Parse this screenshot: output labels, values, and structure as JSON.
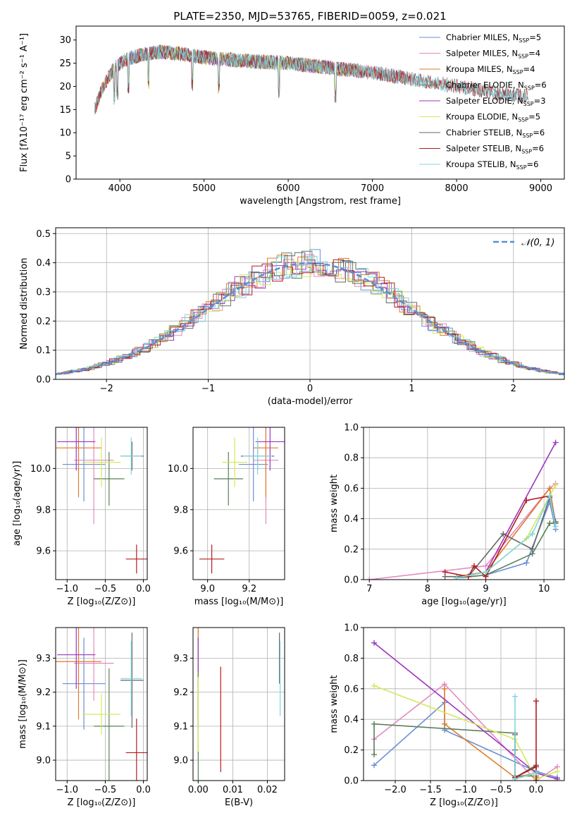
{
  "figure": {
    "title": "PLATE=2350, MJD=53765, FIBERID=0059, z=0.021"
  },
  "colors": {
    "Chabrier MILES": "#6a8fd6",
    "Salpeter MILES": "#e58ac0",
    "Kroupa MILES": "#e07a2a",
    "Chabrier ELODIE": "#5a7f5a",
    "Salpeter ELODIE": "#9d36c0",
    "Kroupa ELODIE": "#d6e85a",
    "Chabrier STELIB": "#666666",
    "Salpeter STELIB": "#b01e1e",
    "Kroupa STELIB": "#7fd6e0",
    "normal": "#5b8fd4",
    "grid": "#b0b0b0"
  },
  "chart_data": [
    {
      "id": "spectrum",
      "type": "line",
      "title": "PLATE=2350, MJD=53765, FIBERID=0059, z=0.021",
      "xlabel": "wavelength [Angstrom, rest frame]",
      "ylabel": "Flux [fλ10⁻¹⁷ erg cm⁻² s⁻¹ A⁻¹]",
      "xlim": [
        3480,
        9280
      ],
      "ylim": [
        0,
        33
      ],
      "xticks": [
        4000,
        5000,
        6000,
        7000,
        8000,
        9000
      ],
      "yticks": [
        0,
        5,
        10,
        15,
        20,
        25,
        30
      ],
      "grid": false,
      "legend_position": "top-right",
      "legend": [
        "Chabrier MILES, N_SSP=5",
        "Salpeter MILES, N_SSP=4",
        "Kroupa MILES, N_SSP=4",
        "Chabrier ELODIE, N_SSP=6",
        "Salpeter ELODIE, N_SSP=3",
        "Kroupa ELODIE, N_SSP=5",
        "Chabrier STELIB, N_SSP=6",
        "Salpeter STELIB, N_SSP=6",
        "Kroupa STELIB, N_SSP=6"
      ],
      "continuum": {
        "x": [
          3700,
          3800,
          3900,
          4000,
          4100,
          4300,
          4500,
          4700,
          4900,
          5100,
          5500,
          6000,
          6500,
          7000,
          7500,
          8000,
          8500,
          8850
        ],
        "y": [
          15,
          20,
          23,
          25,
          26,
          27,
          27.5,
          27,
          26.5,
          26,
          25.5,
          25,
          24,
          23,
          21.5,
          20,
          18.5,
          18
        ]
      },
      "series": [
        {
          "name": "Chabrier MILES",
          "range": [
            3700,
            7400
          ]
        },
        {
          "name": "Salpeter MILES",
          "range": [
            3700,
            7400
          ]
        },
        {
          "name": "Kroupa MILES",
          "range": [
            3700,
            7420
          ]
        },
        {
          "name": "Chabrier ELODIE",
          "range": [
            3900,
            6800
          ]
        },
        {
          "name": "Salpeter ELODIE",
          "range": [
            3900,
            6800
          ]
        },
        {
          "name": "Kroupa ELODIE",
          "range": [
            3890,
            6800
          ]
        },
        {
          "name": "Chabrier STELIB",
          "range": [
            3700,
            8850
          ]
        },
        {
          "name": "Salpeter STELIB",
          "range": [
            3700,
            8850
          ]
        },
        {
          "name": "Kroupa STELIB",
          "range": [
            3700,
            8850
          ]
        }
      ]
    },
    {
      "id": "residuals",
      "type": "line",
      "xlabel": "(data-model)/error",
      "ylabel": "Normed distribution",
      "xlim": [
        -2.5,
        2.5
      ],
      "ylim": [
        0,
        0.52
      ],
      "xticks": [
        -2,
        -1,
        0,
        1,
        2
      ],
      "yticks": [
        0.0,
        0.1,
        0.2,
        0.3,
        0.4,
        0.5
      ],
      "grid": true,
      "legend_position": "top-right",
      "legend": [
        "𝒩(0, 1)"
      ],
      "normal": {
        "mean": 0,
        "sigma": 1
      },
      "bin_width": 0.1,
      "histograms": [
        {
          "name": "Chabrier MILES",
          "shift": 0.0
        },
        {
          "name": "Salpeter MILES",
          "shift": 0.04
        },
        {
          "name": "Kroupa MILES",
          "shift": 0.08
        },
        {
          "name": "Chabrier ELODIE",
          "shift": 0.02
        },
        {
          "name": "Salpeter ELODIE",
          "shift": 0.06
        },
        {
          "name": "Kroupa ELODIE",
          "shift": 0.01
        },
        {
          "name": "Chabrier STELIB",
          "shift": 0.05
        },
        {
          "name": "Salpeter STELIB",
          "shift": 0.03
        },
        {
          "name": "Kroupa STELIB",
          "shift": 0.07
        }
      ]
    },
    {
      "id": "age-vs-Z",
      "type": "scatter",
      "xlabel": "Z [log₁₀(Z/Z⊙)]",
      "ylabel": "age  [log₁₀(age/yr)]",
      "xlim": [
        -1.15,
        0.05
      ],
      "ylim": [
        9.46,
        10.2
      ],
      "xticks": [
        -1.0,
        -0.5,
        0.0
      ],
      "yticks": [
        9.6,
        9.8,
        10.0
      ],
      "grid": true,
      "points": [
        {
          "name": "Chabrier MILES",
          "x": -0.78,
          "y": 10.02,
          "xerr": 0.28,
          "yerr": 0.18
        },
        {
          "name": "Salpeter MILES",
          "x": -0.65,
          "y": 10.04,
          "xerr": 0.26,
          "yerr": 0.31
        },
        {
          "name": "Kroupa MILES",
          "x": -0.85,
          "y": 10.1,
          "xerr": 0.3,
          "yerr": 0.24
        },
        {
          "name": "Chabrier ELODIE",
          "x": -0.45,
          "y": 9.95,
          "xerr": 0.2,
          "yerr": 0.13
        },
        {
          "name": "Salpeter ELODIE",
          "x": -0.88,
          "y": 10.13,
          "xerr": 0.25,
          "yerr": 0.14
        },
        {
          "name": "Kroupa ELODIE",
          "x": -0.55,
          "y": 10.03,
          "xerr": 0.25,
          "yerr": 0.12
        },
        {
          "name": "Chabrier STELIB",
          "x": -0.15,
          "y": 10.06,
          "xerr": 0.15,
          "yerr": 0.07
        },
        {
          "name": "Salpeter STELIB",
          "x": -0.09,
          "y": 9.56,
          "xerr": 0.14,
          "yerr": 0.07
        },
        {
          "name": "Kroupa STELIB",
          "x": -0.16,
          "y": 10.06,
          "xerr": 0.14,
          "yerr": 0.09
        }
      ]
    },
    {
      "id": "age-vs-mass",
      "type": "scatter",
      "xlabel": "mass [log₁₀(M/M⊙)]",
      "ylabel": "",
      "xlim": [
        8.93,
        9.37
      ],
      "ylim": [
        9.46,
        10.2
      ],
      "xticks": [
        9.0,
        9.2
      ],
      "yticks": [
        9.6,
        9.8,
        10.0
      ],
      "grid": true,
      "points": [
        {
          "name": "Chabrier MILES",
          "x": 9.22,
          "y": 10.02,
          "xerr": 0.07,
          "yerr": 0.18
        },
        {
          "name": "Salpeter MILES",
          "x": 9.28,
          "y": 10.04,
          "xerr": 0.06,
          "yerr": 0.31
        },
        {
          "name": "Kroupa MILES",
          "x": 9.28,
          "y": 10.1,
          "xerr": 0.06,
          "yerr": 0.24
        },
        {
          "name": "Chabrier ELODIE",
          "x": 9.1,
          "y": 9.95,
          "xerr": 0.07,
          "yerr": 0.13
        },
        {
          "name": "Salpeter ELODIE",
          "x": 9.3,
          "y": 10.13,
          "xerr": 0.07,
          "yerr": 0.14
        },
        {
          "name": "Kroupa ELODIE",
          "x": 9.13,
          "y": 10.03,
          "xerr": 0.06,
          "yerr": 0.12
        },
        {
          "name": "Chabrier STELIB",
          "x": 9.24,
          "y": 10.06,
          "xerr": 0.08,
          "yerr": 0.07
        },
        {
          "name": "Salpeter STELIB",
          "x": 9.02,
          "y": 9.56,
          "xerr": 0.06,
          "yerr": 0.07
        },
        {
          "name": "Kroupa STELIB",
          "x": 9.24,
          "y": 10.06,
          "xerr": 0.07,
          "yerr": 0.09
        }
      ]
    },
    {
      "id": "weight-vs-age",
      "type": "line",
      "xlabel": "age  [log₁₀(age/yr)]",
      "ylabel": "mass weight",
      "xlim": [
        6.9,
        10.35
      ],
      "ylim": [
        0,
        1.0
      ],
      "xticks": [
        7,
        8,
        9,
        10
      ],
      "yticks": [
        0.0,
        0.2,
        0.4,
        0.6,
        0.8,
        1.0
      ],
      "grid": true,
      "series": [
        {
          "name": "Chabrier MILES",
          "x": [
            8.5,
            9.0,
            9.7,
            10.1,
            10.2
          ],
          "y": [
            0.01,
            0.03,
            0.11,
            0.51,
            0.33
          ]
        },
        {
          "name": "Salpeter MILES",
          "x": [
            7.0,
            9.0,
            10.1,
            10.2
          ],
          "y": [
            0.0,
            0.09,
            0.6,
            0.63
          ]
        },
        {
          "name": "Kroupa MILES",
          "x": [
            8.5,
            9.0,
            10.1,
            10.2
          ],
          "y": [
            0.02,
            0.05,
            0.6,
            0.37
          ]
        },
        {
          "name": "Chabrier ELODIE",
          "x": [
            8.5,
            9.0,
            9.8,
            10.1,
            10.2
          ],
          "y": [
            0.01,
            0.03,
            0.17,
            0.37,
            0.37
          ]
        },
        {
          "name": "Salpeter ELODIE",
          "x": [
            8.5,
            9.0,
            10.2
          ],
          "y": [
            0.01,
            0.05,
            0.9
          ]
        },
        {
          "name": "Kroupa ELODIE",
          "x": [
            8.5,
            9.0,
            9.7,
            10.1,
            10.2
          ],
          "y": [
            0.01,
            0.05,
            0.27,
            0.55,
            0.62
          ]
        },
        {
          "name": "Chabrier STELIB",
          "x": [
            8.3,
            8.7,
            9.3,
            9.8,
            10.1,
            10.2
          ],
          "y": [
            0.02,
            0.02,
            0.3,
            0.2,
            0.54,
            0.38
          ]
        },
        {
          "name": "Salpeter STELIB",
          "x": [
            8.3,
            8.7,
            8.8,
            9.0,
            9.7,
            10.1
          ],
          "y": [
            0.05,
            0.02,
            0.09,
            0.02,
            0.52,
            0.55
          ]
        },
        {
          "name": "Kroupa STELIB",
          "x": [
            8.5,
            9.0,
            9.8,
            10.1,
            10.2
          ],
          "y": [
            0.01,
            0.05,
            0.3,
            0.55,
            0.35
          ]
        }
      ]
    },
    {
      "id": "mass-vs-Z",
      "type": "scatter",
      "xlabel": "Z [log₁₀(Z/Z⊙)]",
      "ylabel": "mass [log₁₀(M/M⊙)]",
      "xlim": [
        -1.15,
        0.05
      ],
      "ylim": [
        8.94,
        9.39
      ],
      "xticks": [
        -1.0,
        -0.5,
        0.0
      ],
      "yticks": [
        9.0,
        9.1,
        9.2,
        9.3
      ],
      "grid": true,
      "points": [
        {
          "name": "Chabrier MILES",
          "x": -0.78,
          "y": 9.225,
          "xerr": 0.28,
          "yerr": 0.135
        },
        {
          "name": "Salpeter MILES",
          "x": -0.65,
          "y": 9.285,
          "xerr": 0.26,
          "yerr": 0.11
        },
        {
          "name": "Kroupa MILES",
          "x": -0.85,
          "y": 9.29,
          "xerr": 0.3,
          "yerr": 0.17
        },
        {
          "name": "Chabrier ELODIE",
          "x": -0.45,
          "y": 9.1,
          "xerr": 0.2,
          "yerr": 0.17
        },
        {
          "name": "Salpeter ELODIE",
          "x": -0.88,
          "y": 9.31,
          "xerr": 0.25,
          "yerr": 0.1
        },
        {
          "name": "Kroupa ELODIE",
          "x": -0.55,
          "y": 9.135,
          "xerr": 0.25,
          "yerr": 0.06
        },
        {
          "name": "Chabrier STELIB",
          "x": -0.15,
          "y": 9.235,
          "xerr": 0.15,
          "yerr": 0.14
        },
        {
          "name": "Salpeter STELIB",
          "x": -0.09,
          "y": 9.022,
          "xerr": 0.14,
          "yerr": 0.1
        },
        {
          "name": "Kroupa STELIB",
          "x": -0.16,
          "y": 9.24,
          "xerr": 0.14,
          "yerr": 0.11
        }
      ]
    },
    {
      "id": "mass-vs-EBV",
      "type": "scatter",
      "xlabel": "E(B-V)",
      "ylabel": "",
      "xlim": [
        -0.0015,
        0.025
      ],
      "ylim": [
        8.94,
        9.39
      ],
      "xticks": [
        0.0,
        0.01,
        0.02
      ],
      "yticks": [
        9.0,
        9.1,
        9.2,
        9.3
      ],
      "grid": true,
      "points": [
        {
          "name": "Chabrier MILES",
          "x": 0.0,
          "y": 9.225,
          "xerr": 0,
          "yerr": 0.135
        },
        {
          "name": "Salpeter MILES",
          "x": 0.0,
          "y": 9.285,
          "xerr": 0,
          "yerr": 0.11
        },
        {
          "name": "Kroupa MILES",
          "x": 0.0,
          "y": 9.29,
          "xerr": 0,
          "yerr": 0.17
        },
        {
          "name": "Chabrier ELODIE",
          "x": 0.0,
          "y": 9.1,
          "xerr": 0,
          "yerr": 0.17
        },
        {
          "name": "Salpeter ELODIE",
          "x": 0.0,
          "y": 9.31,
          "xerr": 0,
          "yerr": 0.05
        },
        {
          "name": "Kroupa ELODIE",
          "x": 0.0,
          "y": 9.135,
          "xerr": 0,
          "yerr": 0.11
        },
        {
          "name": "Chabrier STELIB",
          "x": 0.0235,
          "y": 9.3,
          "xerr": 0,
          "yerr": 0.075
        },
        {
          "name": "Salpeter STELIB",
          "x": 0.0065,
          "y": 9.12,
          "xerr": 0,
          "yerr": 0.155
        },
        {
          "name": "Kroupa STELIB",
          "x": 0.0237,
          "y": 9.24,
          "xerr": 0,
          "yerr": 0.11
        }
      ]
    },
    {
      "id": "weight-vs-Z",
      "type": "line",
      "xlabel": "Z [log₁₀(Z/Z⊙)]",
      "ylabel": "mass weight",
      "xlim": [
        -2.45,
        0.4
      ],
      "ylim": [
        0,
        1.0
      ],
      "xticks": [
        -2.0,
        -1.5,
        -1.0,
        -0.5,
        0.0
      ],
      "yticks": [
        0.0,
        0.2,
        0.4,
        0.6,
        0.8,
        1.0
      ],
      "grid": true,
      "series": [
        {
          "name": "Chabrier MILES",
          "x": [
            -2.3,
            -1.3,
            -1.3,
            0.0,
            0.3
          ],
          "y": [
            0.1,
            0.51,
            0.33,
            0.06,
            0.02
          ]
        },
        {
          "name": "Salpeter MILES",
          "x": [
            -2.3,
            -1.3,
            0.0,
            0.3
          ],
          "y": [
            0.27,
            0.63,
            0.0,
            0.09
          ]
        },
        {
          "name": "Kroupa MILES",
          "x": [
            -1.3,
            -1.3,
            -0.3,
            0.0,
            0.0
          ],
          "y": [
            0.6,
            0.37,
            0.02,
            0.05,
            0.02
          ]
        },
        {
          "name": "Chabrier ELODIE",
          "x": [
            -2.3,
            -2.3,
            -0.3,
            -0.3,
            0.0
          ],
          "y": [
            0.17,
            0.37,
            0.31,
            0.03,
            0.03
          ]
        },
        {
          "name": "Salpeter ELODIE",
          "x": [
            -2.3,
            0.0,
            0.3
          ],
          "y": [
            0.9,
            0.05,
            0.01
          ]
        },
        {
          "name": "Kroupa ELODIE",
          "x": [
            -2.3,
            -0.3,
            0.0,
            0.3
          ],
          "y": [
            0.62,
            0.27,
            0.01,
            0.06
          ]
        },
        {
          "name": "Chabrier STELIB",
          "x": [
            -0.3,
            -0.3,
            -0.3,
            0.0
          ],
          "y": [
            0.3,
            0.2,
            0.02,
            0.1
          ]
        },
        {
          "name": "Salpeter STELIB",
          "x": [
            -0.3,
            0.0,
            0.0,
            0.0
          ],
          "y": [
            0.02,
            0.09,
            0.52,
            0.0
          ]
        },
        {
          "name": "Kroupa STELIB",
          "x": [
            -0.3,
            -0.3,
            0.0
          ],
          "y": [
            0.55,
            0.01,
            0.05
          ]
        }
      ]
    }
  ]
}
